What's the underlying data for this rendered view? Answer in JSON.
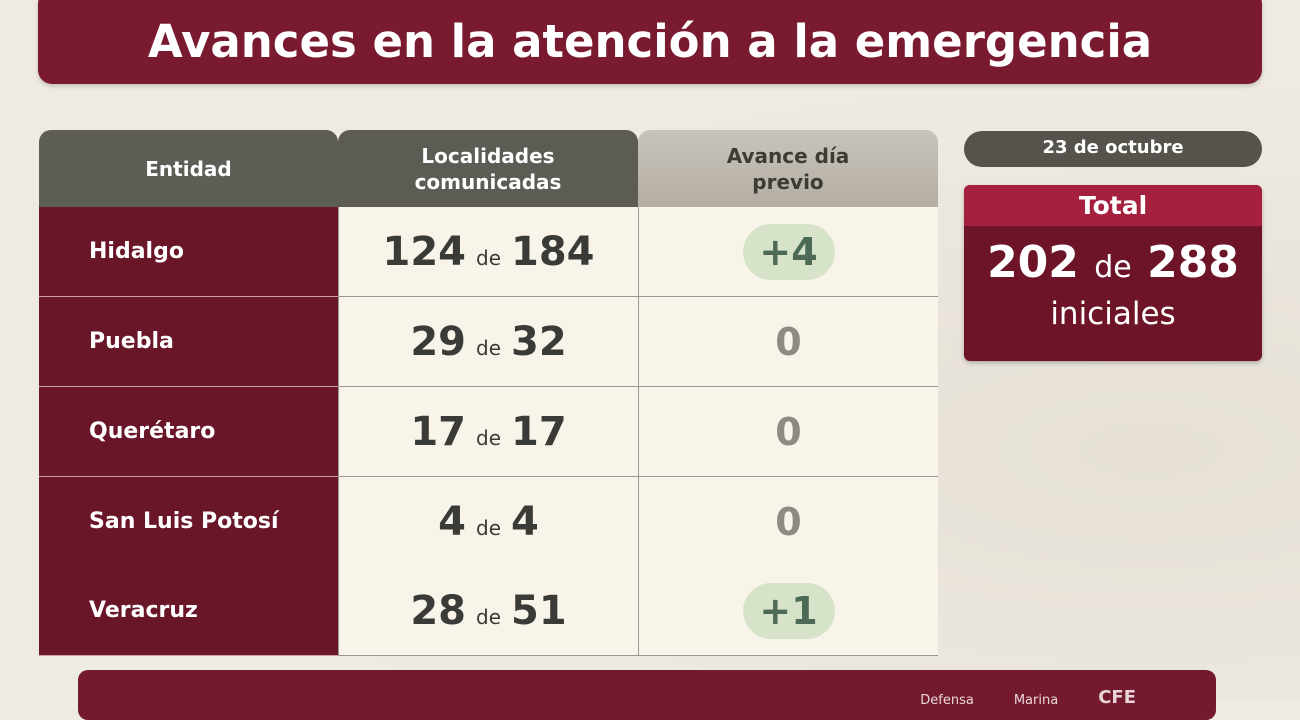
{
  "title": "Avances en la atención a la emergencia",
  "table": {
    "headers": [
      "Entidad",
      "Localidades comunicadas",
      "Avance día previo"
    ],
    "connector": "de",
    "rows": [
      {
        "entidad": "Hidalgo",
        "comunicadas": "124",
        "total": "184",
        "avance": "+4",
        "highlight": true
      },
      {
        "entidad": "Puebla",
        "comunicadas": "29",
        "total": "32",
        "avance": "0",
        "highlight": false
      },
      {
        "entidad": "Querétaro",
        "comunicadas": "17",
        "total": "17",
        "avance": "0",
        "highlight": false
      },
      {
        "entidad": "San Luis Potosí",
        "comunicadas": "4",
        "total": "4",
        "avance": "0",
        "highlight": false
      },
      {
        "entidad": "Veracruz",
        "comunicadas": "28",
        "total": "51",
        "avance": "+1",
        "highlight": true
      }
    ]
  },
  "summary": {
    "date": "23 de octubre",
    "label": "Total",
    "value": "202",
    "connector": "de",
    "total": "288",
    "suffix": "iniciales"
  },
  "footer": {
    "items": [
      "Defensa",
      "Marina",
      "CFE"
    ]
  },
  "colors": {
    "brand": "#7a1a30",
    "header": "#5e5d56",
    "highlight": "#d6e3c9"
  }
}
